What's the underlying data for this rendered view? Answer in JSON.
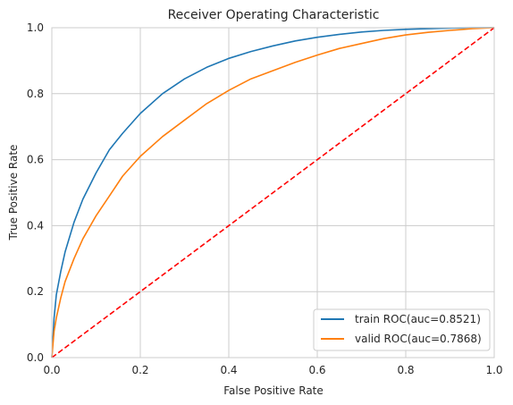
{
  "chart_data": {
    "type": "line",
    "title": "Receiver Operating Characteristic",
    "xlabel": "False Positive Rate",
    "ylabel": "True Positive Rate",
    "xlim": [
      0,
      1
    ],
    "ylim": [
      0,
      1
    ],
    "x_ticks": [
      "0.0",
      "0.2",
      "0.4",
      "0.6",
      "0.8",
      "1.0"
    ],
    "y_ticks": [
      "0.0",
      "0.2",
      "0.4",
      "0.6",
      "0.8",
      "1.0"
    ],
    "grid": true,
    "legend_position": "lower-right",
    "series": [
      {
        "name": "train ROC(auc=0.8521)",
        "color": "#1f77b4",
        "x": [
          0,
          0.005,
          0.01,
          0.02,
          0.03,
          0.05,
          0.07,
          0.1,
          0.13,
          0.16,
          0.2,
          0.25,
          0.3,
          0.35,
          0.4,
          0.45,
          0.5,
          0.55,
          0.6,
          0.65,
          0.7,
          0.75,
          0.8,
          0.85,
          0.9,
          0.95,
          1.0
        ],
        "y": [
          0,
          0.12,
          0.19,
          0.26,
          0.32,
          0.41,
          0.48,
          0.56,
          0.63,
          0.68,
          0.74,
          0.8,
          0.845,
          0.88,
          0.907,
          0.928,
          0.945,
          0.96,
          0.971,
          0.98,
          0.987,
          0.992,
          0.995,
          0.997,
          0.999,
          1.0,
          1.0
        ]
      },
      {
        "name": "valid ROC(auc=0.7868)",
        "color": "#ff7f0e",
        "x": [
          0,
          0.005,
          0.01,
          0.02,
          0.03,
          0.05,
          0.07,
          0.1,
          0.13,
          0.16,
          0.2,
          0.25,
          0.3,
          0.35,
          0.4,
          0.45,
          0.5,
          0.55,
          0.6,
          0.65,
          0.7,
          0.75,
          0.8,
          0.85,
          0.9,
          0.95,
          1.0
        ],
        "y": [
          0,
          0.08,
          0.12,
          0.18,
          0.23,
          0.3,
          0.36,
          0.43,
          0.49,
          0.55,
          0.61,
          0.67,
          0.72,
          0.77,
          0.81,
          0.845,
          0.87,
          0.895,
          0.917,
          0.937,
          0.952,
          0.967,
          0.978,
          0.986,
          0.992,
          0.997,
          1.0
        ]
      },
      {
        "name": "",
        "color": "#ff0000",
        "style": "dashed",
        "x": [
          0,
          1
        ],
        "y": [
          0,
          1
        ]
      }
    ]
  }
}
